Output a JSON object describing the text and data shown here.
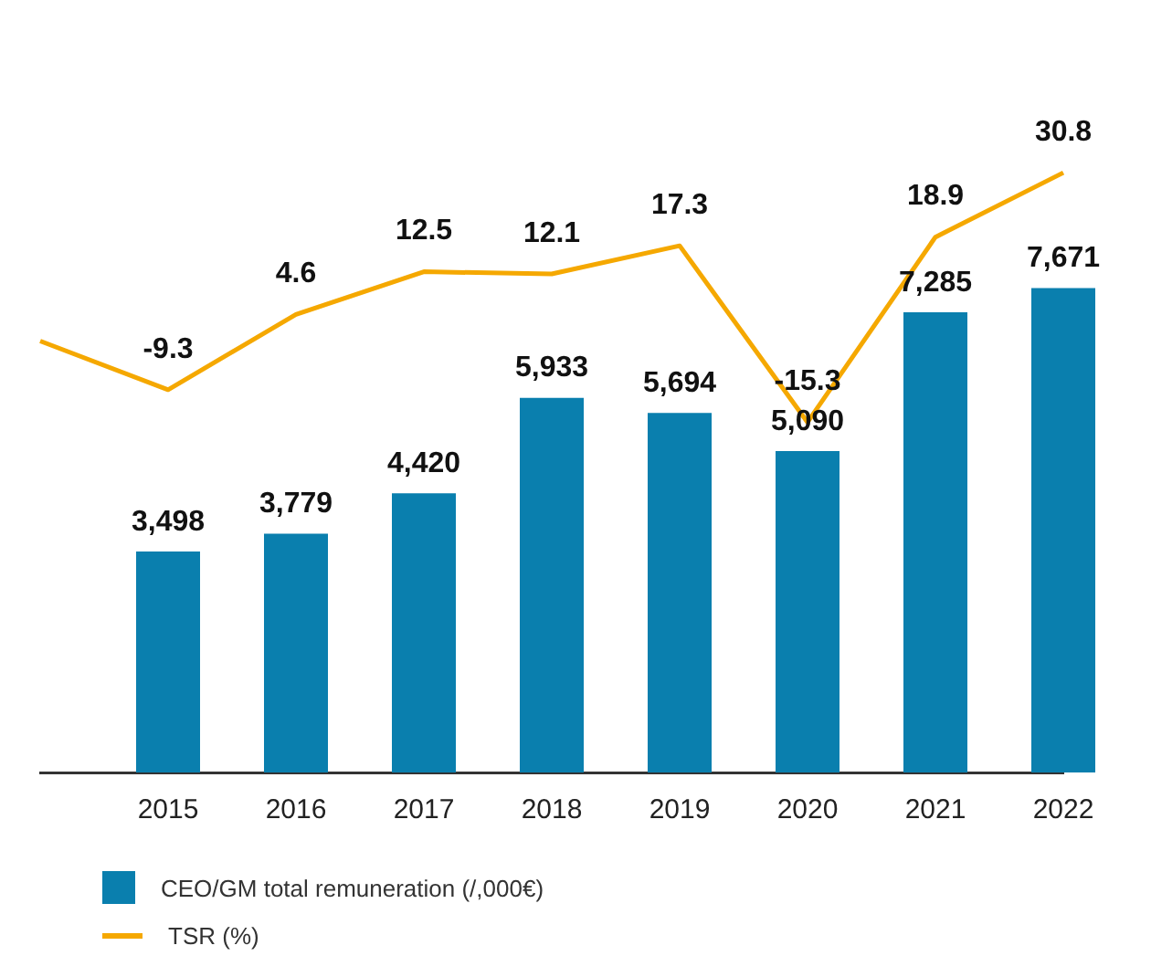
{
  "chart_data": {
    "type": "bar",
    "categories": [
      null,
      "2015",
      "2016",
      "2017",
      "2018",
      "2019",
      "2020",
      "2021",
      "2022"
    ],
    "series": [
      {
        "name": "CEO/GM total remuneration (/,000€)",
        "color": "#0a7fae",
        "values": [
          null,
          3498,
          3779,
          4420,
          5933,
          5694,
          5090,
          7285,
          7671
        ],
        "value_labels": [
          null,
          "3,498",
          "3,779",
          "4,420",
          "5,933",
          "5,694",
          "5,090",
          "7,285",
          "7,671"
        ]
      },
      {
        "name": "TSR (%)",
        "type": "line",
        "axis": "y2",
        "color": "#f5a800",
        "values": [
          -0.3,
          -9.3,
          4.6,
          12.5,
          12.1,
          17.3,
          -15.3,
          18.9,
          30.8
        ],
        "value_labels": [
          null,
          "-9.3",
          "4.6",
          "12.5",
          "12.1",
          "17.3",
          "-15.3",
          "18.9",
          "30.8"
        ]
      }
    ],
    "tick_labels": "x",
    "grid": false,
    "legend": "bottom left",
    "marker": "none"
  }
}
